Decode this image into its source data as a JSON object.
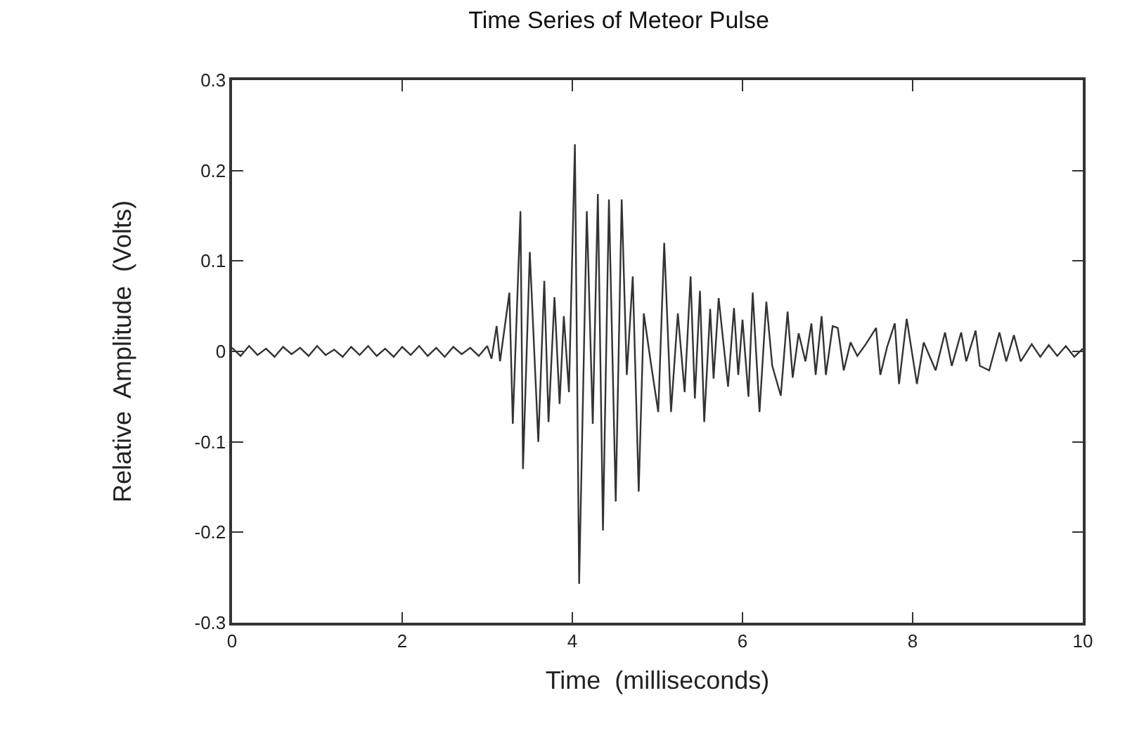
{
  "chart_data": {
    "type": "line",
    "title": "Time Series of Meteor Pulse",
    "xlabel": "Time  (milliseconds)",
    "ylabel": "Relative  Amplitude  (Volts)",
    "xlim": [
      0,
      10
    ],
    "ylim": [
      -0.3,
      0.3
    ],
    "xticks": [
      0,
      2,
      4,
      6,
      8,
      10
    ],
    "yticks": [
      -0.3,
      -0.2,
      -0.1,
      0,
      0.1,
      0.2,
      0.3
    ],
    "series": [
      {
        "color": "#333333",
        "x": [
          0,
          0.1,
          0.2,
          0.3,
          0.4,
          0.5,
          0.6,
          0.7,
          0.8,
          0.9,
          1.0,
          1.1,
          1.2,
          1.3,
          1.4,
          1.5,
          1.6,
          1.7,
          1.8,
          1.9,
          2.0,
          2.1,
          2.2,
          2.3,
          2.4,
          2.5,
          2.6,
          2.7,
          2.8,
          2.9,
          3.0,
          3.05,
          3.11,
          3.15,
          3.26,
          3.3,
          3.39,
          3.42,
          3.5,
          3.6,
          3.67,
          3.72,
          3.79,
          3.85,
          3.9,
          3.96,
          4.03,
          4.08,
          4.17,
          4.24,
          4.3,
          4.36,
          4.43,
          4.51,
          4.58,
          4.64,
          4.71,
          4.78,
          4.84,
          4.92,
          5.01,
          5.08,
          5.16,
          5.24,
          5.32,
          5.39,
          5.44,
          5.5,
          5.55,
          5.62,
          5.66,
          5.72,
          5.83,
          5.9,
          5.95,
          6.0,
          6.07,
          6.12,
          6.2,
          6.28,
          6.35,
          6.45,
          6.53,
          6.59,
          6.66,
          6.74,
          6.81,
          6.86,
          6.93,
          6.98,
          7.06,
          7.12,
          7.19,
          7.27,
          7.35,
          7.45,
          7.57,
          7.62,
          7.7,
          7.79,
          7.84,
          7.93,
          8.05,
          8.13,
          8.27,
          8.38,
          8.46,
          8.57,
          8.63,
          8.74,
          8.79,
          8.9,
          9.02,
          9.1,
          9.19,
          9.27,
          9.4,
          9.5,
          9.6,
          9.7,
          9.8,
          9.9,
          10
        ],
        "values": [
          0.004,
          -0.005,
          0.006,
          -0.004,
          0.003,
          -0.006,
          0.005,
          -0.003,
          0.004,
          -0.005,
          0.006,
          -0.004,
          0.002,
          -0.006,
          0.005,
          -0.004,
          0.006,
          -0.005,
          0.003,
          -0.006,
          0.005,
          -0.004,
          0.006,
          -0.005,
          0.004,
          -0.006,
          0.005,
          -0.003,
          0.004,
          -0.005,
          0.006,
          -0.008,
          0.028,
          -0.011,
          0.065,
          -0.08,
          0.155,
          -0.13,
          0.11,
          -0.1,
          0.078,
          -0.078,
          0.06,
          -0.058,
          0.039,
          -0.045,
          0.229,
          -0.257,
          0.155,
          -0.08,
          0.174,
          -0.198,
          0.168,
          -0.166,
          0.168,
          -0.026,
          0.083,
          -0.155,
          0.042,
          -0.011,
          -0.067,
          0.12,
          -0.067,
          0.042,
          -0.045,
          0.083,
          -0.052,
          0.067,
          -0.078,
          0.047,
          -0.03,
          0.059,
          -0.039,
          0.048,
          -0.026,
          0.035,
          -0.05,
          0.065,
          -0.067,
          0.055,
          -0.016,
          -0.049,
          0.044,
          -0.029,
          0.02,
          -0.011,
          0.031,
          -0.026,
          0.039,
          -0.026,
          0.028,
          0.026,
          -0.021,
          0.01,
          -0.005,
          0.008,
          0.026,
          -0.026,
          0.005,
          0.031,
          -0.036,
          0.036,
          -0.036,
          0.01,
          -0.021,
          0.021,
          -0.016,
          0.021,
          -0.011,
          0.023,
          -0.016,
          -0.021,
          0.021,
          -0.011,
          0.018,
          -0.011,
          0.008,
          -0.006,
          0.007,
          -0.005,
          0.006,
          -0.006,
          0.003
        ]
      }
    ]
  }
}
